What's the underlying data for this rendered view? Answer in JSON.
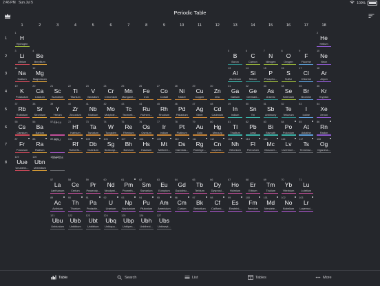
{
  "status": {
    "time": "2:46 PM",
    "date": "Sun Jul 5",
    "battery": "100%"
  },
  "title": "Periodic Table",
  "groups": [
    "1",
    "2",
    "3",
    "4",
    "5",
    "6",
    "7",
    "8",
    "9",
    "10",
    "11",
    "12",
    "13",
    "14",
    "15",
    "16",
    "17",
    "18"
  ],
  "periods": [
    "1",
    "2",
    "3",
    "4",
    "5",
    "6",
    "7",
    "8"
  ],
  "categoryColors": {
    "nonmetal": "#9ab83a",
    "noble": "#8e5ad0",
    "alkali": "#d24a5a",
    "alkaline": "#e0a236",
    "transition": "#c98536",
    "post": "#3bb3a8",
    "metalloid": "#2f8c8a",
    "halogen": "#5c9fd8",
    "lanthanide": "#c44f9a",
    "actinide": "#b55bd6",
    "unknown": "#6a6c70"
  },
  "elements": [
    {
      "n": "1",
      "s": "H",
      "name": "Hydrogen",
      "g": 1,
      "p": 1,
      "c": "nonmetal"
    },
    {
      "n": "2",
      "s": "He",
      "name": "Helium",
      "g": 18,
      "p": 1,
      "c": "noble"
    },
    {
      "n": "3",
      "s": "Li",
      "name": "Lithium",
      "g": 1,
      "p": 2,
      "c": "alkali"
    },
    {
      "n": "4",
      "s": "Be",
      "name": "Beryllium",
      "g": 2,
      "p": 2,
      "c": "alkaline"
    },
    {
      "n": "5",
      "s": "B",
      "name": "Boron",
      "g": 13,
      "p": 2,
      "c": "metalloid"
    },
    {
      "n": "6",
      "s": "C",
      "name": "Carbon",
      "g": 14,
      "p": 2,
      "c": "nonmetal"
    },
    {
      "n": "7",
      "s": "N",
      "name": "Nitrogen",
      "g": 15,
      "p": 2,
      "c": "nonmetal"
    },
    {
      "n": "8",
      "s": "O",
      "name": "Oxygen",
      "g": 16,
      "p": 2,
      "c": "nonmetal"
    },
    {
      "n": "9",
      "s": "F",
      "name": "Fluorine",
      "g": 17,
      "p": 2,
      "c": "halogen"
    },
    {
      "n": "10",
      "s": "Ne",
      "name": "Neon",
      "g": 18,
      "p": 2,
      "c": "noble"
    },
    {
      "n": "11",
      "s": "Na",
      "name": "Sodium",
      "g": 1,
      "p": 3,
      "c": "alkali"
    },
    {
      "n": "12",
      "s": "Mg",
      "name": "Magnesium",
      "g": 2,
      "p": 3,
      "c": "alkaline"
    },
    {
      "n": "13",
      "s": "Al",
      "name": "Aluminum",
      "g": 13,
      "p": 3,
      "c": "post"
    },
    {
      "n": "14",
      "s": "Si",
      "name": "Silicon",
      "g": 14,
      "p": 3,
      "c": "metalloid"
    },
    {
      "n": "15",
      "s": "P",
      "name": "Phospho...",
      "g": 15,
      "p": 3,
      "c": "nonmetal"
    },
    {
      "n": "16",
      "s": "S",
      "name": "Sulfur",
      "g": 16,
      "p": 3,
      "c": "nonmetal"
    },
    {
      "n": "17",
      "s": "Cl",
      "name": "Chlorine",
      "g": 17,
      "p": 3,
      "c": "halogen"
    },
    {
      "n": "18",
      "s": "Ar",
      "name": "Argon",
      "g": 18,
      "p": 3,
      "c": "noble"
    },
    {
      "n": "19",
      "s": "K",
      "name": "Potassium",
      "g": 1,
      "p": 4,
      "c": "alkali"
    },
    {
      "n": "20",
      "s": "Ca",
      "name": "Calcium",
      "g": 2,
      "p": 4,
      "c": "alkaline"
    },
    {
      "n": "21",
      "s": "Sc",
      "name": "Scandium",
      "g": 3,
      "p": 4,
      "c": "transition"
    },
    {
      "n": "22",
      "s": "Ti",
      "name": "Titanium",
      "g": 4,
      "p": 4,
      "c": "transition"
    },
    {
      "n": "23",
      "s": "V",
      "name": "Vanadium",
      "g": 5,
      "p": 4,
      "c": "transition"
    },
    {
      "n": "24",
      "s": "Cr",
      "name": "Chromium",
      "g": 6,
      "p": 4,
      "c": "transition"
    },
    {
      "n": "25",
      "s": "Mn",
      "name": "Mangane...",
      "g": 7,
      "p": 4,
      "c": "transition"
    },
    {
      "n": "26",
      "s": "Fe",
      "name": "Iron",
      "g": 8,
      "p": 4,
      "c": "transition"
    },
    {
      "n": "27",
      "s": "Co",
      "name": "Cobalt",
      "g": 9,
      "p": 4,
      "c": "transition"
    },
    {
      "n": "28",
      "s": "Ni",
      "name": "Nickel",
      "g": 10,
      "p": 4,
      "c": "transition"
    },
    {
      "n": "29",
      "s": "Cu",
      "name": "Copper",
      "g": 11,
      "p": 4,
      "c": "transition"
    },
    {
      "n": "30",
      "s": "Zn",
      "name": "Zinc",
      "g": 12,
      "p": 4,
      "c": "transition"
    },
    {
      "n": "31",
      "s": "Ga",
      "name": "Gallium",
      "g": 13,
      "p": 4,
      "c": "post"
    },
    {
      "n": "32",
      "s": "Ge",
      "name": "Germani...",
      "g": 14,
      "p": 4,
      "c": "metalloid"
    },
    {
      "n": "33",
      "s": "As",
      "name": "Arsenic",
      "g": 15,
      "p": 4,
      "c": "metalloid"
    },
    {
      "n": "34",
      "s": "Se",
      "name": "Selenium",
      "g": 16,
      "p": 4,
      "c": "nonmetal"
    },
    {
      "n": "35",
      "s": "Br",
      "name": "Bromine",
      "g": 17,
      "p": 4,
      "c": "halogen"
    },
    {
      "n": "36",
      "s": "Kr",
      "name": "Krypton",
      "g": 18,
      "p": 4,
      "c": "noble"
    },
    {
      "n": "37",
      "s": "Rb",
      "name": "Rubidium",
      "g": 1,
      "p": 5,
      "c": "alkali"
    },
    {
      "n": "38",
      "s": "Sr",
      "name": "Strontium",
      "g": 2,
      "p": 5,
      "c": "alkaline"
    },
    {
      "n": "39",
      "s": "Y",
      "name": "Yttrium",
      "g": 3,
      "p": 5,
      "c": "transition"
    },
    {
      "n": "40",
      "s": "Zr",
      "name": "Zirconium",
      "g": 4,
      "p": 5,
      "c": "transition"
    },
    {
      "n": "41",
      "s": "Nb",
      "name": "Niobium",
      "g": 5,
      "p": 5,
      "c": "transition"
    },
    {
      "n": "42",
      "s": "Mo",
      "name": "Molybde...",
      "g": 6,
      "p": 5,
      "c": "transition"
    },
    {
      "n": "43",
      "s": "Tc",
      "name": "Techneti...",
      "g": 7,
      "p": 5,
      "c": "transition"
    },
    {
      "n": "44",
      "s": "Ru",
      "name": "Rutheni...",
      "g": 8,
      "p": 5,
      "c": "transition"
    },
    {
      "n": "45",
      "s": "Rh",
      "name": "Rhodium",
      "g": 9,
      "p": 5,
      "c": "transition"
    },
    {
      "n": "46",
      "s": "Pd",
      "name": "Palladium",
      "g": 10,
      "p": 5,
      "c": "transition"
    },
    {
      "n": "47",
      "s": "Ag",
      "name": "Silver",
      "g": 11,
      "p": 5,
      "c": "transition"
    },
    {
      "n": "48",
      "s": "Cd",
      "name": "Cadmium",
      "g": 12,
      "p": 5,
      "c": "transition"
    },
    {
      "n": "49",
      "s": "In",
      "name": "Indium",
      "g": 13,
      "p": 5,
      "c": "post"
    },
    {
      "n": "50",
      "s": "Sn",
      "name": "Tin",
      "g": 14,
      "p": 5,
      "c": "post"
    },
    {
      "n": "51",
      "s": "Sb",
      "name": "Antimony",
      "g": 15,
      "p": 5,
      "c": "metalloid"
    },
    {
      "n": "52",
      "s": "Te",
      "name": "Tellurium",
      "g": 16,
      "p": 5,
      "c": "metalloid"
    },
    {
      "n": "53",
      "s": "I",
      "name": "Iodine",
      "g": 17,
      "p": 5,
      "c": "halogen"
    },
    {
      "n": "54",
      "s": "Xe",
      "name": "Xenon",
      "g": 18,
      "p": 5,
      "c": "noble"
    },
    {
      "n": "55",
      "s": "Cs",
      "name": "Caesium",
      "g": 1,
      "p": 6,
      "c": "alkali"
    },
    {
      "n": "56",
      "s": "Ba",
      "name": "Barium",
      "g": 2,
      "p": 6,
      "c": "alkaline"
    },
    {
      "n": "72",
      "s": "Hf",
      "name": "Hafnium",
      "g": 4,
      "p": 6,
      "c": "transition"
    },
    {
      "n": "73",
      "s": "Ta",
      "name": "Tantalum",
      "g": 5,
      "p": 6,
      "c": "transition"
    },
    {
      "n": "74",
      "s": "W",
      "name": "Tungsten",
      "g": 6,
      "p": 6,
      "c": "transition"
    },
    {
      "n": "75",
      "s": "Re",
      "name": "Rhenium",
      "g": 7,
      "p": 6,
      "c": "transition"
    },
    {
      "n": "76",
      "s": "Os",
      "name": "Osmium",
      "g": 8,
      "p": 6,
      "c": "transition"
    },
    {
      "n": "77",
      "s": "Ir",
      "name": "Iridium",
      "g": 9,
      "p": 6,
      "c": "transition"
    },
    {
      "n": "78",
      "s": "Pt",
      "name": "Platinum",
      "g": 10,
      "p": 6,
      "c": "transition"
    },
    {
      "n": "79",
      "s": "Au",
      "name": "Gold",
      "g": 11,
      "p": 6,
      "c": "transition"
    },
    {
      "n": "80",
      "s": "Hg",
      "name": "Mercury",
      "g": 12,
      "p": 6,
      "c": "transition"
    },
    {
      "n": "81",
      "s": "Tl",
      "name": "Thallium",
      "g": 13,
      "p": 6,
      "c": "post"
    },
    {
      "n": "82",
      "s": "Pb",
      "name": "Lead",
      "g": 14,
      "p": 6,
      "c": "post"
    },
    {
      "n": "83",
      "s": "Bi",
      "name": "Bismuth",
      "g": 15,
      "p": 6,
      "c": "post"
    },
    {
      "n": "84",
      "s": "Po",
      "name": "Polonium",
      "g": 16,
      "p": 6,
      "c": "post",
      "dot": true
    },
    {
      "n": "85",
      "s": "At",
      "name": "Astatine",
      "g": 17,
      "p": 6,
      "c": "halogen",
      "dot": true
    },
    {
      "n": "86",
      "s": "Rn",
      "name": "Radon",
      "g": 18,
      "p": 6,
      "c": "noble",
      "dot": true
    },
    {
      "n": "87",
      "s": "Fr",
      "name": "Francium",
      "g": 1,
      "p": 7,
      "c": "alkali",
      "dot": true
    },
    {
      "n": "88",
      "s": "Ra",
      "name": "Radium",
      "g": 2,
      "p": 7,
      "c": "alkaline",
      "dot": true
    },
    {
      "n": "104",
      "s": "Rf",
      "name": "Rutherfo...",
      "g": 4,
      "p": 7,
      "c": "transition",
      "dot": true
    },
    {
      "n": "105",
      "s": "Db",
      "name": "Dubnium",
      "g": 5,
      "p": 7,
      "c": "transition",
      "dot": true
    },
    {
      "n": "106",
      "s": "Sg",
      "name": "Seaborgi...",
      "g": 6,
      "p": 7,
      "c": "transition",
      "dot": true
    },
    {
      "n": "107",
      "s": "Bh",
      "name": "Bohrium",
      "g": 7,
      "p": 7,
      "c": "transition",
      "dot": true
    },
    {
      "n": "108",
      "s": "Hs",
      "name": "Hassium",
      "g": 8,
      "p": 7,
      "c": "transition",
      "dot": true
    },
    {
      "n": "109",
      "s": "Mt",
      "name": "Meitneri...",
      "g": 9,
      "p": 7,
      "c": "unknown",
      "dot": true
    },
    {
      "n": "110",
      "s": "Ds",
      "name": "Darmsta...",
      "g": 10,
      "p": 7,
      "c": "unknown",
      "dot": true
    },
    {
      "n": "111",
      "s": "Rg",
      "name": "Roentge...",
      "g": 11,
      "p": 7,
      "c": "unknown",
      "dot": true
    },
    {
      "n": "112",
      "s": "Cn",
      "name": "Coperni...",
      "g": 12,
      "p": 7,
      "c": "transition",
      "dot": true
    },
    {
      "n": "113",
      "s": "Nh",
      "name": "Nihonium",
      "g": 13,
      "p": 7,
      "c": "unknown",
      "dot": true
    },
    {
      "n": "114",
      "s": "Fl",
      "name": "Flerovium",
      "g": 14,
      "p": 7,
      "c": "unknown",
      "dot": true
    },
    {
      "n": "115",
      "s": "Mc",
      "name": "Moscovi...",
      "g": 15,
      "p": 7,
      "c": "unknown",
      "dot": true
    },
    {
      "n": "116",
      "s": "Lv",
      "name": "Livermori...",
      "g": 16,
      "p": 7,
      "c": "unknown",
      "dot": true
    },
    {
      "n": "117",
      "s": "Ts",
      "name": "Tennessi...",
      "g": 17,
      "p": 7,
      "c": "unknown",
      "dot": true
    },
    {
      "n": "118",
      "s": "Og",
      "name": "Oganess...",
      "g": 18,
      "p": 7,
      "c": "unknown",
      "dot": true
    },
    {
      "n": "119",
      "s": "Uue",
      "name": "Ununenn...",
      "g": 1,
      "p": 8,
      "c": "alkali"
    },
    {
      "n": "120",
      "s": "Ubn",
      "name": "Unbinilium",
      "g": 2,
      "p": 8,
      "c": "alkaline"
    },
    {
      "n": "57",
      "s": "La",
      "name": "Lanthanum",
      "g": 3,
      "p": 9.3,
      "c": "lanthanide"
    },
    {
      "n": "58",
      "s": "Ce",
      "name": "Cerium",
      "g": 4,
      "p": 9.3,
      "c": "lanthanide"
    },
    {
      "n": "59",
      "s": "Pr",
      "name": "Praseody...",
      "g": 5,
      "p": 9.3,
      "c": "lanthanide"
    },
    {
      "n": "60",
      "s": "Nd",
      "name": "Neodymi...",
      "g": 6,
      "p": 9.3,
      "c": "lanthanide"
    },
    {
      "n": "61",
      "s": "Pm",
      "name": "Prometh...",
      "g": 7,
      "p": 9.3,
      "c": "lanthanide",
      "dot": true
    },
    {
      "n": "62",
      "s": "Sm",
      "name": "Samarium",
      "g": 8,
      "p": 9.3,
      "c": "lanthanide"
    },
    {
      "n": "63",
      "s": "Eu",
      "name": "Europium",
      "g": 9,
      "p": 9.3,
      "c": "lanthanide"
    },
    {
      "n": "64",
      "s": "Gd",
      "name": "Gadoliniu...",
      "g": 10,
      "p": 9.3,
      "c": "lanthanide"
    },
    {
      "n": "65",
      "s": "Tb",
      "name": "Terbium",
      "g": 11,
      "p": 9.3,
      "c": "lanthanide"
    },
    {
      "n": "66",
      "s": "Dy",
      "name": "Dysprosi...",
      "g": 12,
      "p": 9.3,
      "c": "lanthanide"
    },
    {
      "n": "67",
      "s": "Ho",
      "name": "Holmium",
      "g": 13,
      "p": 9.3,
      "c": "lanthanide"
    },
    {
      "n": "68",
      "s": "Er",
      "name": "Erbium",
      "g": 14,
      "p": 9.3,
      "c": "lanthanide"
    },
    {
      "n": "69",
      "s": "Tm",
      "name": "Thulium",
      "g": 15,
      "p": 9.3,
      "c": "lanthanide"
    },
    {
      "n": "70",
      "s": "Yb",
      "name": "Ytterbium",
      "g": 16,
      "p": 9.3,
      "c": "lanthanide"
    },
    {
      "n": "71",
      "s": "Lu",
      "name": "Lutetium",
      "g": 17,
      "p": 9.3,
      "c": "lanthanide"
    },
    {
      "n": "89",
      "s": "Ac",
      "name": "Actinium",
      "g": 3,
      "p": 10.3,
      "c": "actinide",
      "dot": true
    },
    {
      "n": "90",
      "s": "Th",
      "name": "Thorium",
      "g": 4,
      "p": 10.3,
      "c": "actinide",
      "dot": true
    },
    {
      "n": "91",
      "s": "Pa",
      "name": "Protactin...",
      "g": 5,
      "p": 10.3,
      "c": "actinide",
      "dot": true
    },
    {
      "n": "92",
      "s": "U",
      "name": "Uranium",
      "g": 6,
      "p": 10.3,
      "c": "actinide",
      "dot": true
    },
    {
      "n": "93",
      "s": "Np",
      "name": "Neptunium",
      "g": 7,
      "p": 10.3,
      "c": "actinide",
      "dot": true
    },
    {
      "n": "94",
      "s": "Pu",
      "name": "Plutonium",
      "g": 8,
      "p": 10.3,
      "c": "actinide",
      "dot": true
    },
    {
      "n": "95",
      "s": "Am",
      "name": "Americium",
      "g": 9,
      "p": 10.3,
      "c": "actinide",
      "dot": true
    },
    {
      "n": "96",
      "s": "Cm",
      "name": "Curium",
      "g": 10,
      "p": 10.3,
      "c": "actinide",
      "dot": true
    },
    {
      "n": "97",
      "s": "Bk",
      "name": "Berkelium",
      "g": 11,
      "p": 10.3,
      "c": "actinide",
      "dot": true
    },
    {
      "n": "98",
      "s": "Cf",
      "name": "Californi...",
      "g": 12,
      "p": 10.3,
      "c": "actinide",
      "dot": true
    },
    {
      "n": "99",
      "s": "Es",
      "name": "Einsteini...",
      "g": 13,
      "p": 10.3,
      "c": "actinide",
      "dot": true
    },
    {
      "n": "100",
      "s": "Fm",
      "name": "Fermium",
      "g": 14,
      "p": 10.3,
      "c": "actinide",
      "dot": true
    },
    {
      "n": "101",
      "s": "Md",
      "name": "Mendele...",
      "g": 15,
      "p": 10.3,
      "c": "actinide",
      "dot": true
    },
    {
      "n": "102",
      "s": "No",
      "name": "Nobelium",
      "g": 16,
      "p": 10.3,
      "c": "actinide",
      "dot": true
    },
    {
      "n": "103",
      "s": "Lr",
      "name": "Lawrenci...",
      "g": 17,
      "p": 10.3,
      "c": "actinide",
      "dot": true
    },
    {
      "n": "121",
      "s": "Ubu",
      "name": "Unbiunium",
      "g": 3,
      "p": 11.3,
      "c": "unknown"
    },
    {
      "n": "122",
      "s": "Ubb",
      "name": "Unbibium",
      "g": 4,
      "p": 11.3,
      "c": "unknown"
    },
    {
      "n": "123",
      "s": "Ubt",
      "name": "Unbitrium",
      "g": 5,
      "p": 11.3,
      "c": "unknown"
    },
    {
      "n": "124",
      "s": "Ubq",
      "name": "Unbiqua...",
      "g": 6,
      "p": 11.3,
      "c": "unknown"
    },
    {
      "n": "125",
      "s": "Ubp",
      "name": "Unbipen...",
      "g": 7,
      "p": 11.3,
      "c": "unknown"
    },
    {
      "n": "126",
      "s": "Ubh",
      "name": "Unbihexi...",
      "g": 8,
      "p": 11.3,
      "c": "unknown"
    },
    {
      "n": "127",
      "s": "Ubs",
      "name": "Unbisept...",
      "g": 9,
      "p": 11.3,
      "c": "unknown"
    }
  ],
  "placeholders": [
    {
      "n": "57-71",
      "s": "La-Lu",
      "g": 3,
      "p": 6,
      "c": "lanthanide"
    },
    {
      "n": "89-103",
      "s": "Ac-Lr",
      "g": 3,
      "p": 7,
      "c": "actinide"
    },
    {
      "n": "121-127",
      "s": "Ubu-Ubs",
      "g": 3,
      "p": 8,
      "c": "unknown"
    }
  ],
  "tabs": [
    {
      "label": "Table",
      "icon": "table-icon",
      "active": true
    },
    {
      "label": "Search",
      "icon": "search-icon",
      "active": false
    },
    {
      "label": "List",
      "icon": "list-icon",
      "active": false
    },
    {
      "label": "Tables",
      "icon": "tables-icon",
      "active": false
    },
    {
      "label": "More",
      "icon": "more-icon",
      "active": false
    }
  ]
}
